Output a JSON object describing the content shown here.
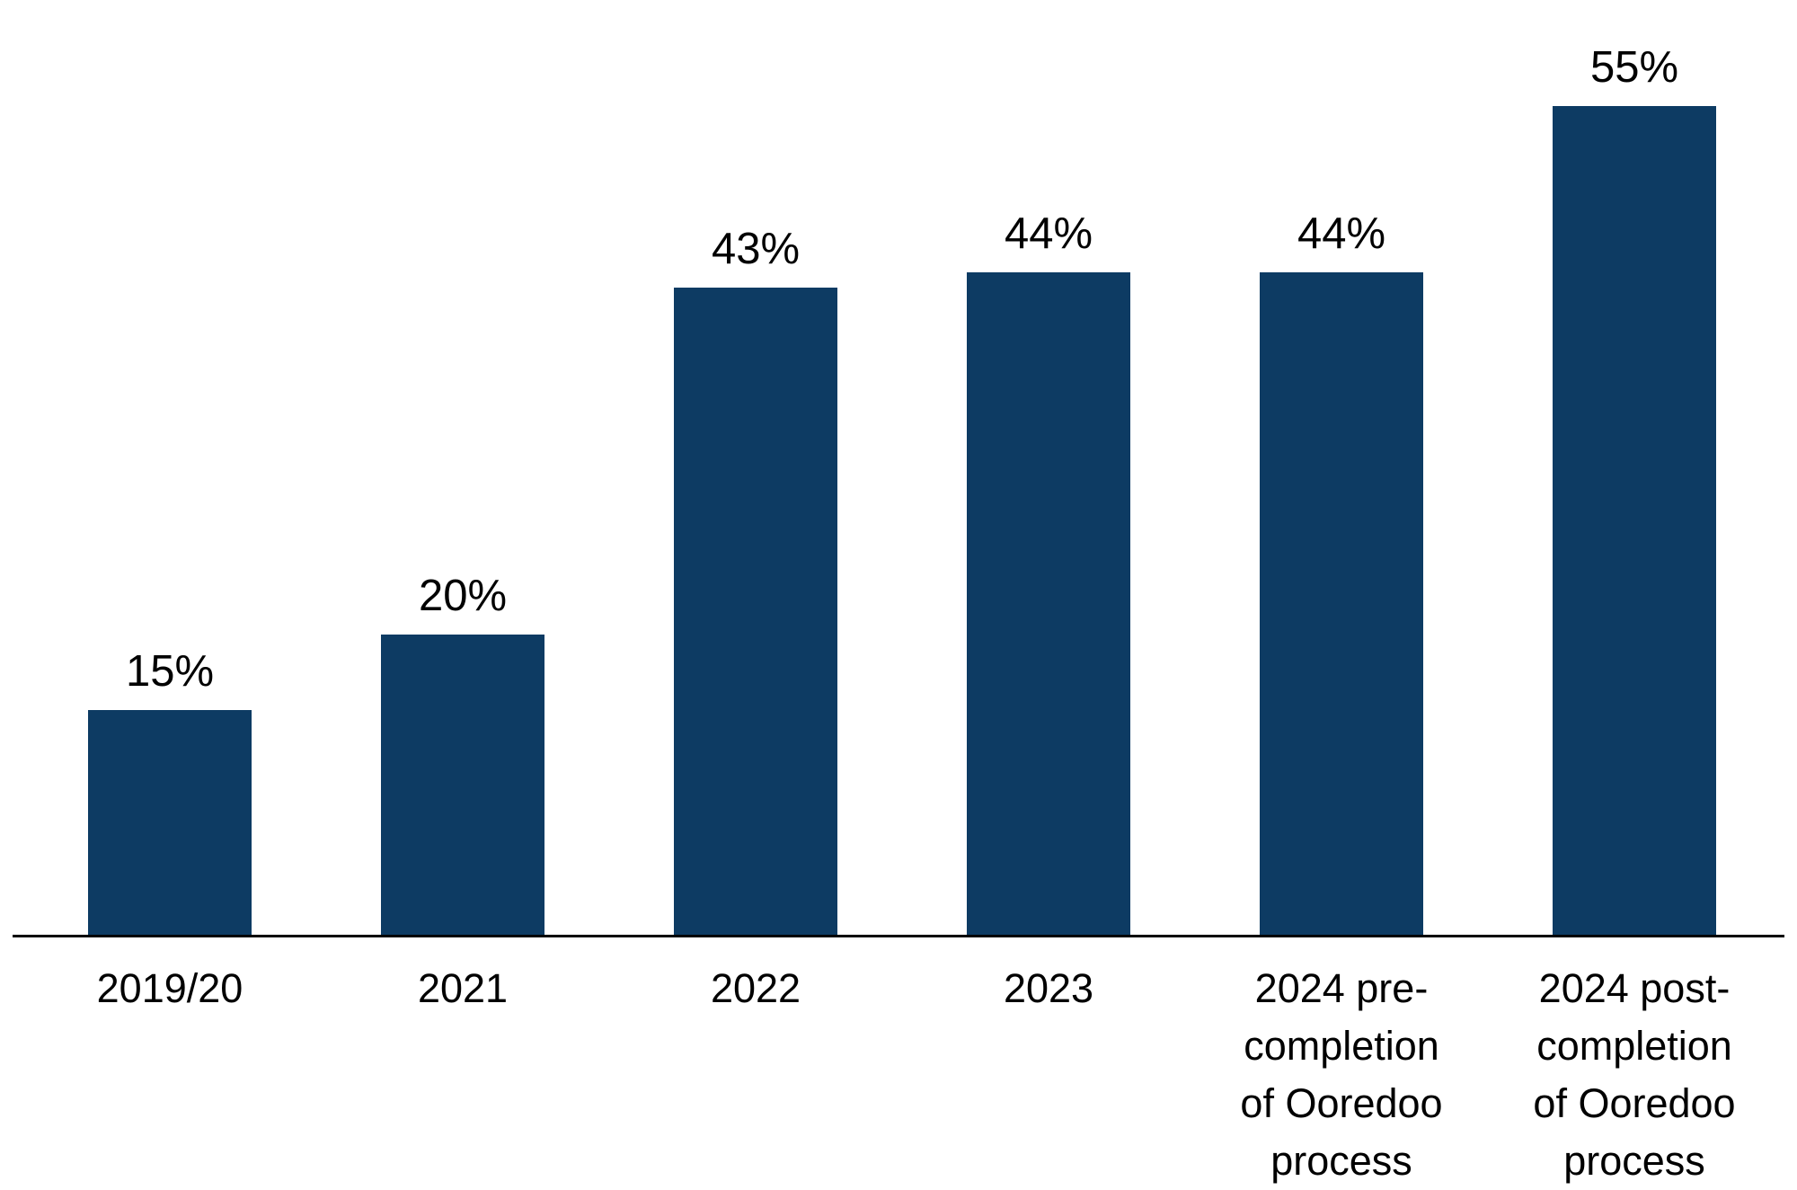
{
  "chart_data": {
    "type": "bar",
    "title": "",
    "categories": [
      "2019/20",
      "2021",
      "2022",
      "2023",
      "2024 pre-\ncompletion\nof Ooredoo\nprocess",
      "2024 post-\ncompletion\nof Ooredoo\nprocess"
    ],
    "values": [
      15,
      20,
      43,
      44,
      44,
      55
    ],
    "value_labels": [
      "15%",
      "20%",
      "43%",
      "44%",
      "44%",
      "55%"
    ],
    "xlabel": "",
    "ylabel": "",
    "ylim": [
      0,
      60
    ],
    "grid": false,
    "legend": false,
    "bar_color": "#0d3b63",
    "axis_color": "#000000",
    "text_color": "#000000",
    "background_color": "#ffffff"
  }
}
